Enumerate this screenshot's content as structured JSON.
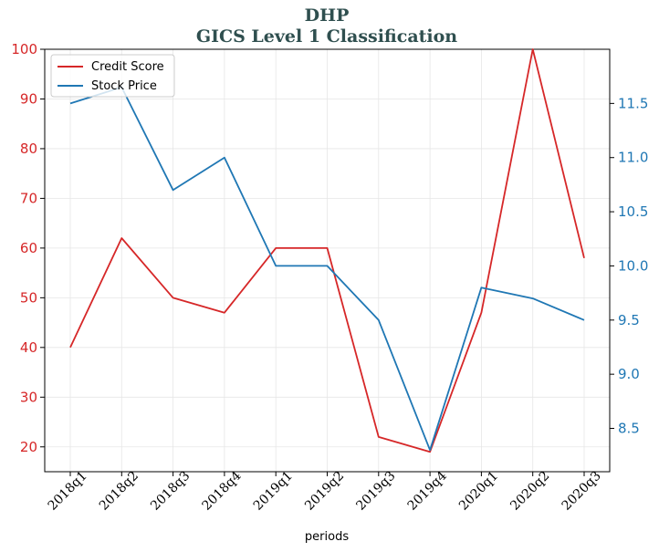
{
  "chart_data": {
    "type": "line",
    "title": "DHP",
    "subtitle": "GICS Level 1 Classification",
    "xlabel": "periods",
    "categories": [
      "2018q1",
      "2018q2",
      "2018q3",
      "2018q4",
      "2019q1",
      "2019q2",
      "2019q3",
      "2019q4",
      "2020q1",
      "2020q2",
      "2020q3"
    ],
    "series": [
      {
        "name": "Credit Score",
        "axis": "left",
        "color": "#d62728",
        "values": [
          40,
          62,
          50,
          47,
          60,
          60,
          22,
          19,
          47,
          100,
          58
        ]
      },
      {
        "name": "Stock Price",
        "axis": "right",
        "color": "#1f77b4",
        "values": [
          11.5,
          11.65,
          10.7,
          11.0,
          10.0,
          10.0,
          9.5,
          8.3,
          9.8,
          9.7,
          9.5
        ]
      }
    ],
    "y_left": {
      "ylim": [
        15,
        100
      ],
      "ticks": [
        20,
        30,
        40,
        50,
        60,
        70,
        80,
        90,
        100
      ],
      "tick_color": "#d62728"
    },
    "y_right": {
      "ylim": [
        8.1,
        12.0
      ],
      "ticks": [
        "8.5",
        "9.0",
        "9.5",
        "10.0",
        "10.5",
        "11.0",
        "11.5"
      ],
      "tick_color": "#1f77b4"
    },
    "grid": true,
    "legend": "top-left"
  }
}
